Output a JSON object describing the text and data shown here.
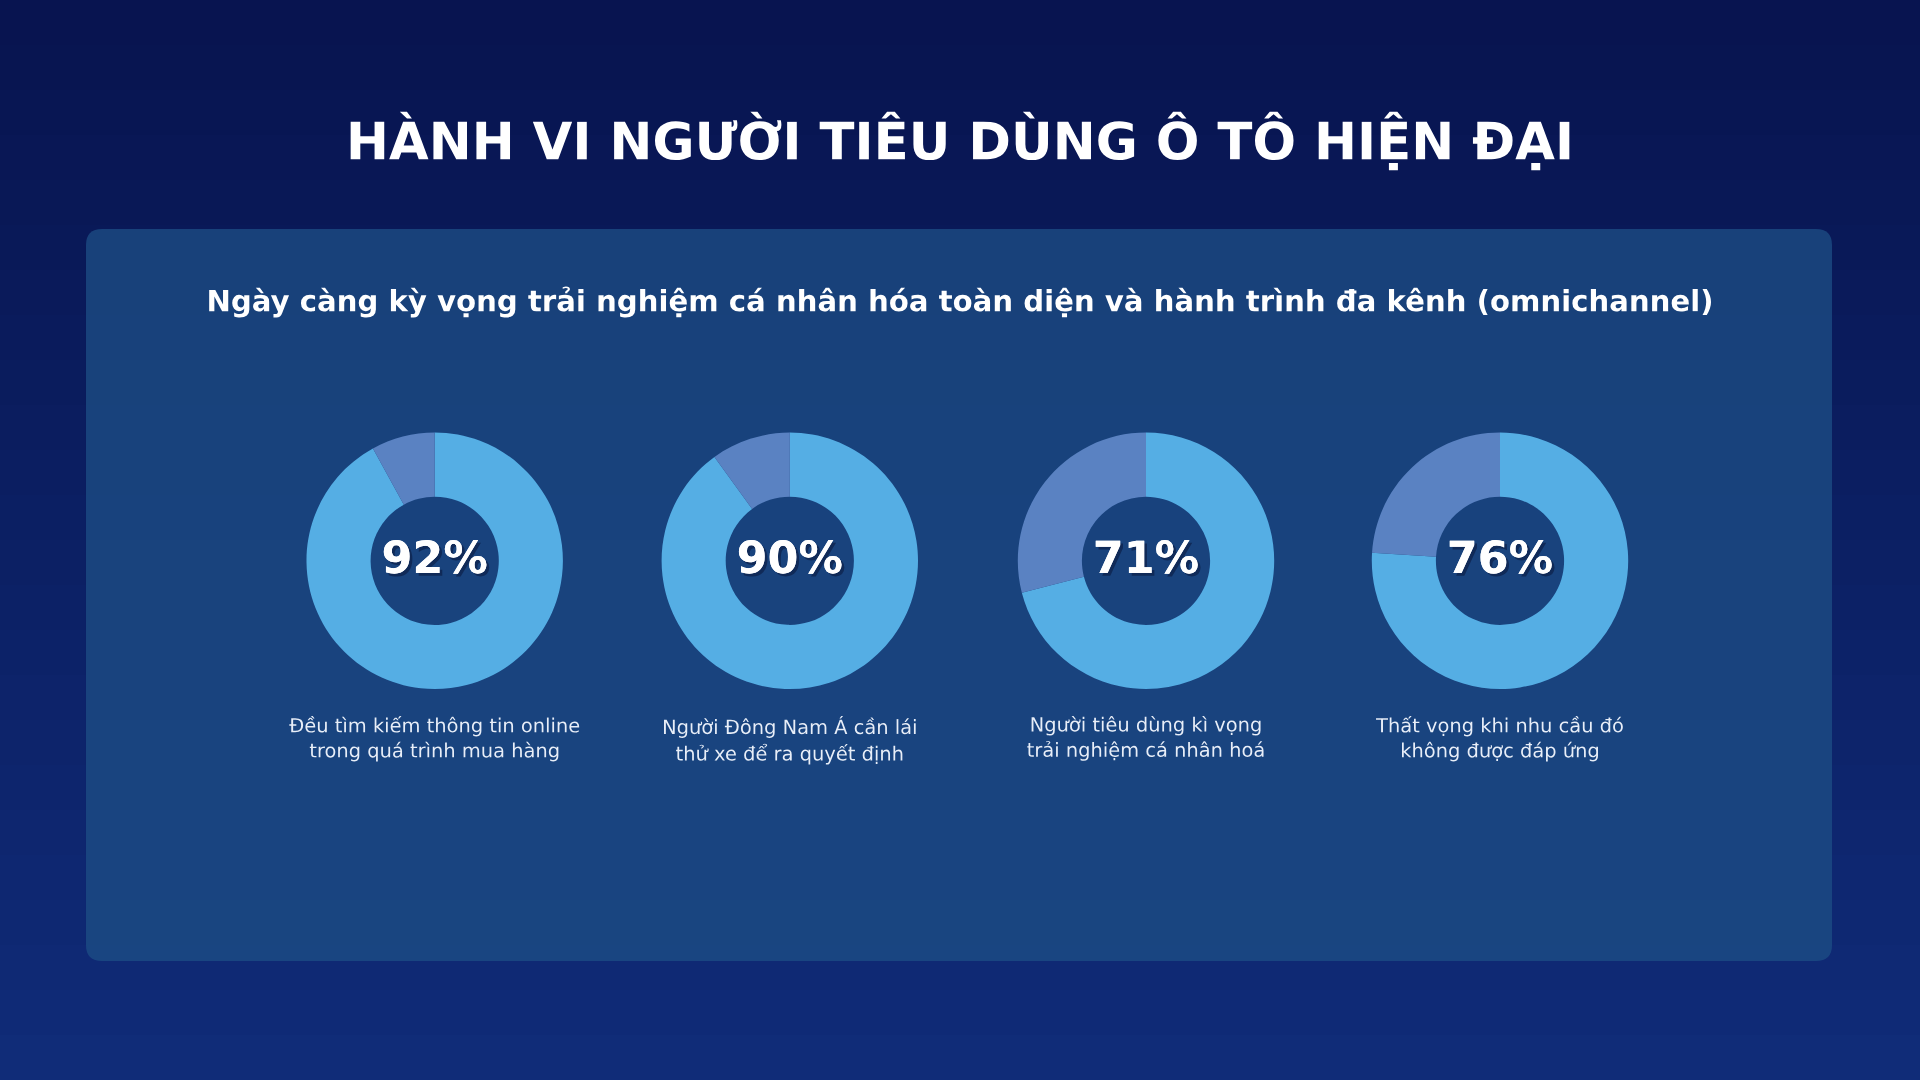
{
  "chart_data": [
    {
      "type": "donut",
      "title": "HÀNH VI NGƯỜI TIÊU DÙNG Ô TÔ HIỆN ĐẠI",
      "subtitle": "Ngày càng kỳ vọng trải nghiệm cá nhân hóa toàn diện và hành trình đa kênh (omnichannel)",
      "categories": [
        null,
        null
      ],
      "values": [
        92,
        8
      ],
      "colors": [
        "#55aee4",
        "#5a82c2"
      ],
      "value_labels": [
        "92%",
        null
      ],
      "annotations": [
        "Đều tìm kiếm thông tin online\ntrong quá trình mua hàng"
      ]
    },
    {
      "type": "donut",
      "categories": [
        null,
        null
      ],
      "values": [
        90,
        10
      ],
      "colors": [
        "#55aee4",
        "#5a82c2"
      ],
      "value_labels": [
        "90%",
        null
      ],
      "annotations": [
        "Người Đông Nam Á cần lái\nthử xe để ra quyết định"
      ]
    },
    {
      "type": "donut",
      "categories": [
        null,
        null
      ],
      "values": [
        71,
        29
      ],
      "colors": [
        "#55aee4",
        "#5a82c2"
      ],
      "value_labels": [
        "71%",
        null
      ],
      "annotations": [
        "Người tiêu dùng kì vọng\ntrải nghiệm cá nhân hoá"
      ]
    },
    {
      "type": "donut",
      "categories": [
        null,
        null
      ],
      "values": [
        76,
        24
      ],
      "colors": [
        "#55aee4",
        "#5a82c2"
      ],
      "value_labels": [
        "76%",
        null
      ],
      "annotations": [
        "Thất vọng khi nhu cầu đó\nkhông được đáp ứng"
      ]
    }
  ]
}
